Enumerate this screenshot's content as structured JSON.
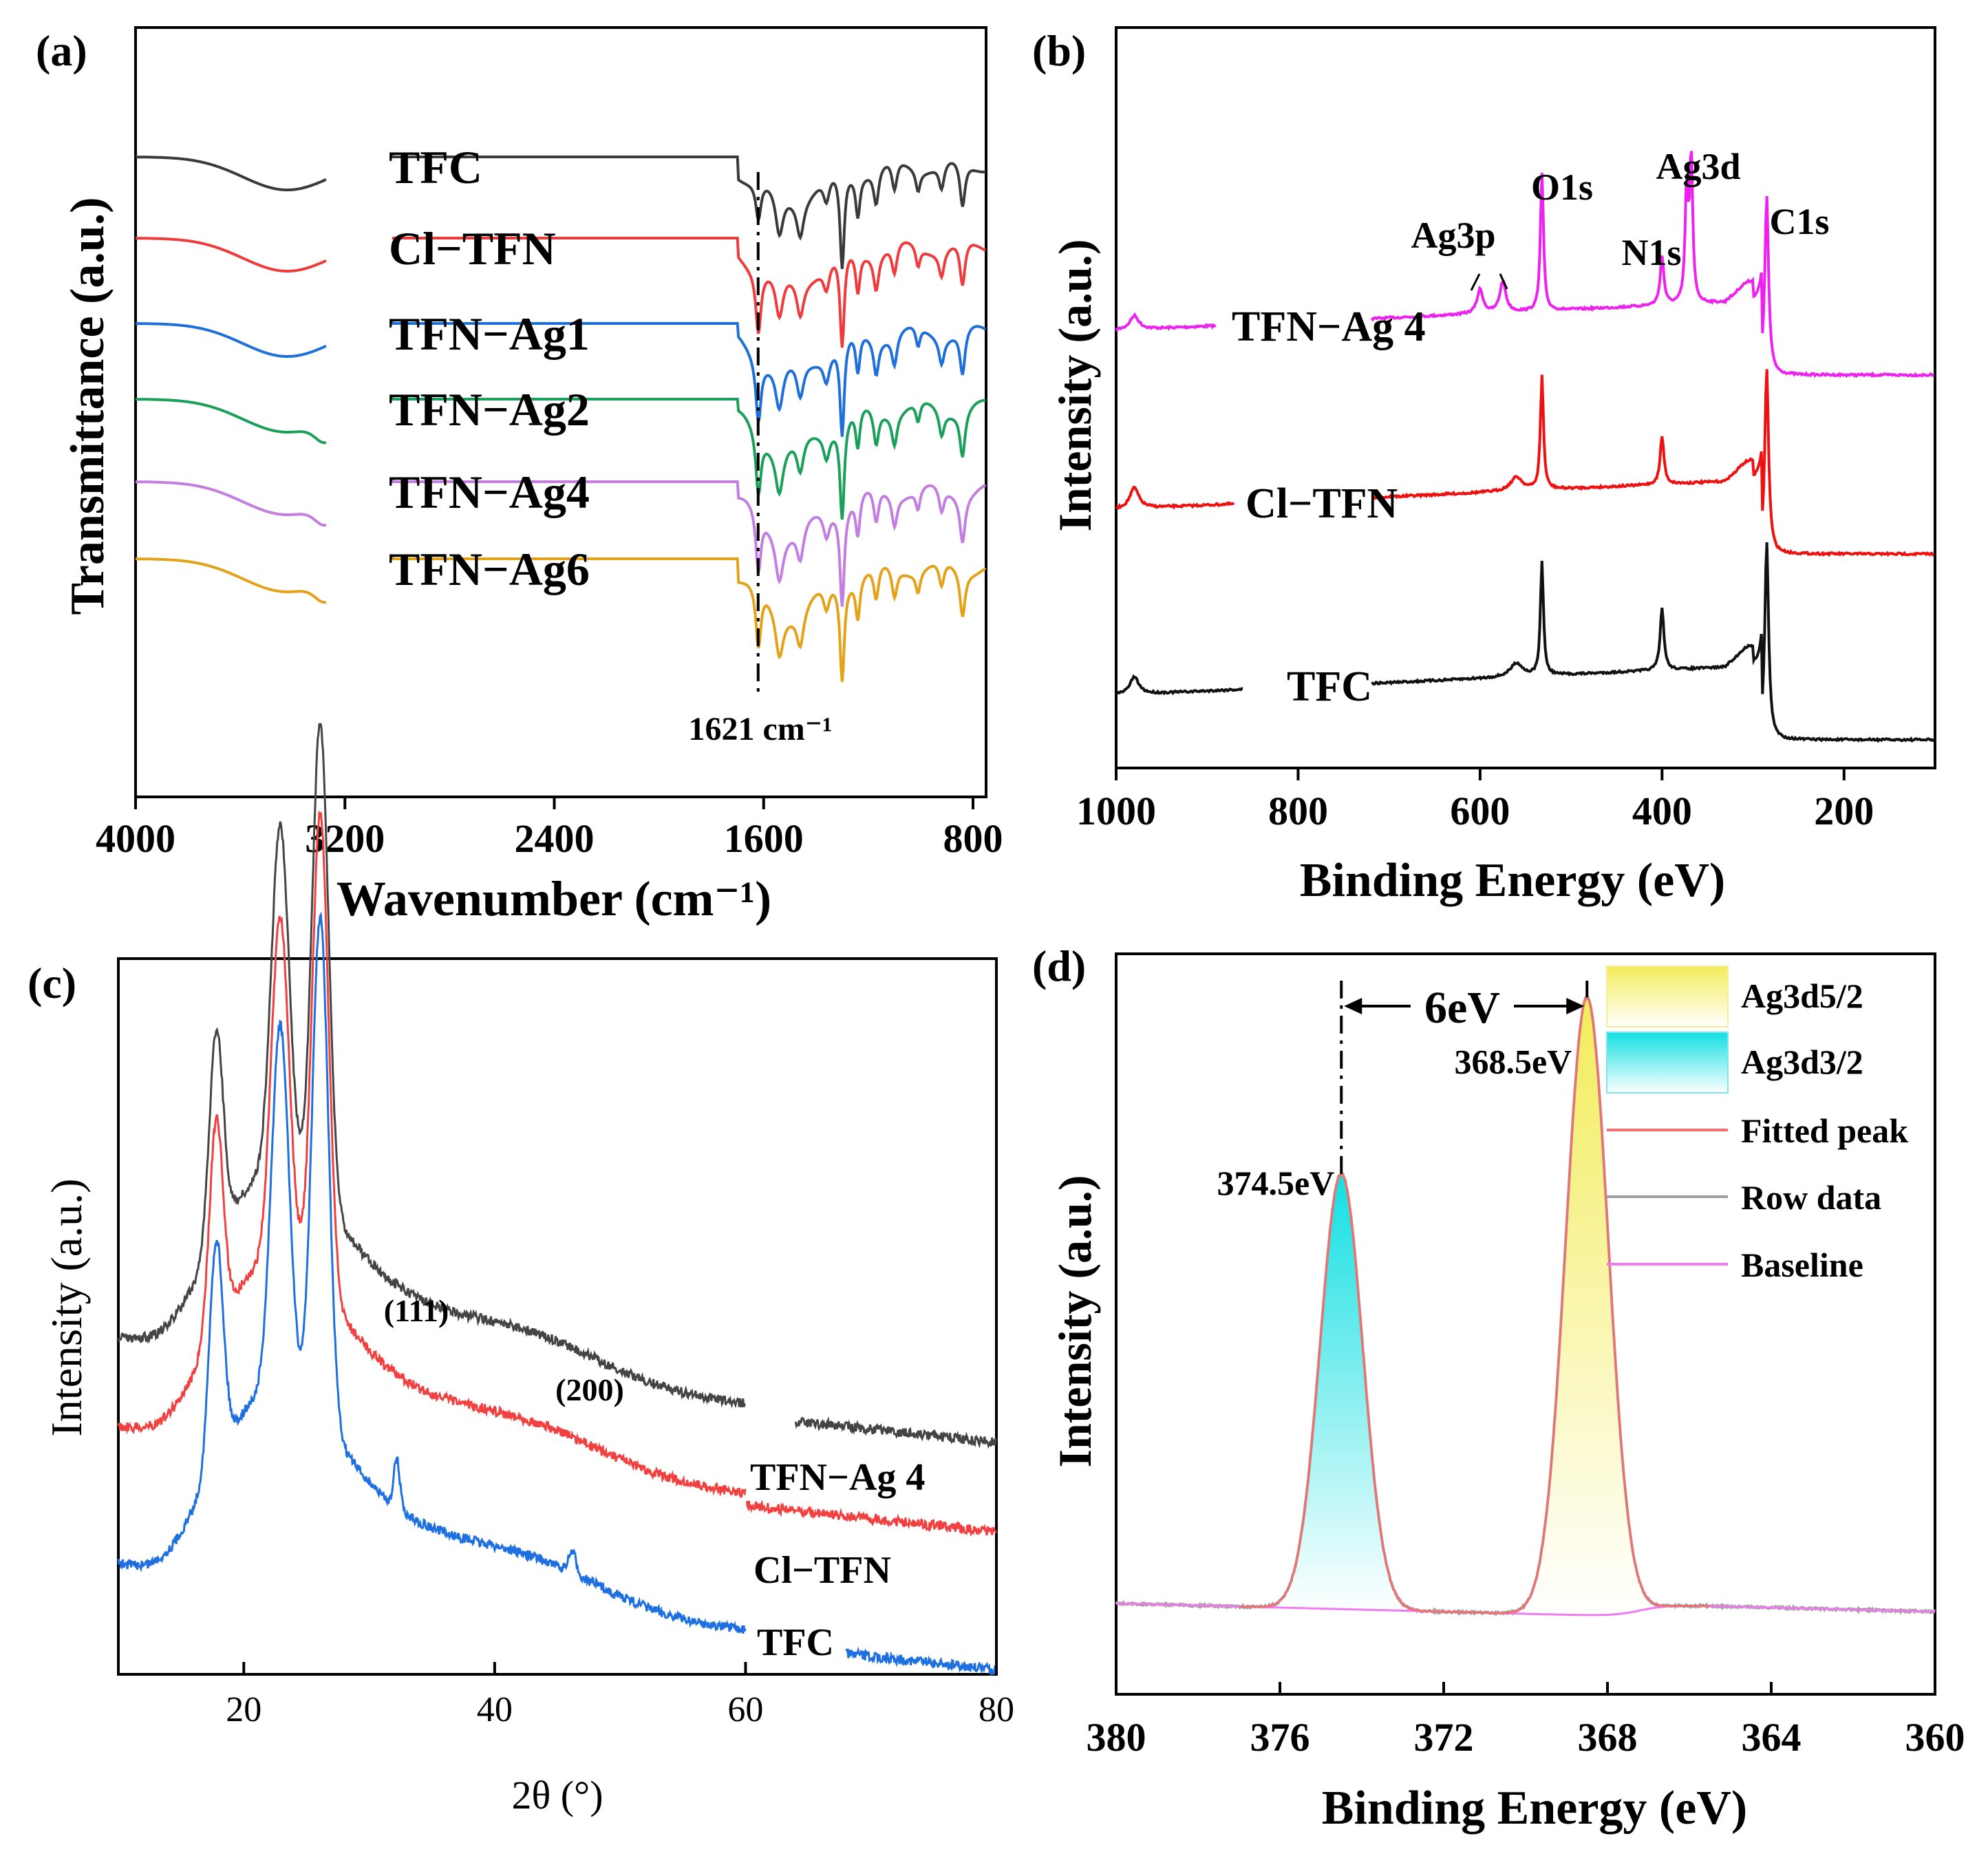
{
  "chart_data": [
    {
      "panel": "(a)",
      "type": "line",
      "title": "",
      "xlabel": "Wavenumber (cm⁻¹)",
      "ylabel": "Transmittance (a.u.)",
      "xlim": [
        4000,
        750
      ],
      "xticks": [
        4000,
        3200,
        2400,
        1600,
        800
      ],
      "tick_labels": [
        "4000",
        "3200",
        "2400",
        "1600",
        "800"
      ],
      "annotation": "1621 cm⁻¹",
      "marker_x": 1621,
      "series": [
        {
          "name": "TFC",
          "color": "#3a3a3a",
          "baseline": 0.0
        },
        {
          "name": "Cl−TFN",
          "color": "#ee3b3b",
          "baseline": 1.0
        },
        {
          "name": "TFN−Ag1",
          "color": "#1e6fd9",
          "baseline": 2.0
        },
        {
          "name": "TFN−Ag2",
          "color": "#1aa05a",
          "baseline": 3.0
        },
        {
          "name": "TFN−Ag4",
          "color": "#c27ee0",
          "baseline": 4.0
        },
        {
          "name": "TFN−Ag6",
          "color": "#e3a21a",
          "baseline": 5.0
        }
      ]
    },
    {
      "panel": "(b)",
      "type": "line",
      "xlabel": "Binding Energy (eV)",
      "ylabel": "Intensity (a.u.)",
      "xlim": [
        1000,
        100
      ],
      "xticks": [
        1000,
        800,
        600,
        400,
        200
      ],
      "tick_labels": [
        "1000",
        "800",
        "600",
        "400",
        "200"
      ],
      "peak_labels": [
        "Ag3p",
        "O1s",
        "Ag3d",
        "N1s",
        "C1s"
      ],
      "series": [
        {
          "name": "TFN−Ag 4",
          "color": "#ee22ee"
        },
        {
          "name": "Cl−TFN",
          "color": "#ee1111"
        },
        {
          "name": "TFC",
          "color": "#111111"
        }
      ]
    },
    {
      "panel": "(c)",
      "type": "line",
      "xlabel": "2θ (°)",
      "ylabel": "Intensity (a.u.)",
      "xlim": [
        10,
        80
      ],
      "xticks": [
        20,
        40,
        60,
        80
      ],
      "tick_labels": [
        "20",
        "40",
        "60",
        "80"
      ],
      "peak_labels": [
        "(111)",
        "(200)"
      ],
      "series": [
        {
          "name": "TFN−Ag 4",
          "color": "#1e6fe0"
        },
        {
          "name": "Cl−TFN",
          "color": "#f04040"
        },
        {
          "name": "TFC",
          "color": "#444444"
        }
      ]
    },
    {
      "panel": "(d)",
      "type": "area",
      "xlabel": "Binding Energy (eV)",
      "ylabel": "Intensity (a.u.)",
      "xlim": [
        380,
        360
      ],
      "xticks": [
        380,
        376,
        372,
        368,
        364,
        360
      ],
      "tick_labels": [
        "380",
        "376",
        "372",
        "368",
        "364",
        "360"
      ],
      "peaks": [
        {
          "label": "374.5eV",
          "center": 374.5,
          "height": 0.62
        },
        {
          "label": "368.5eV",
          "center": 368.5,
          "height": 0.88
        }
      ],
      "separation_label": "6eV",
      "legend": [
        "Ag3d5/2",
        "Ag3d3/2",
        "Fitted peak",
        "Row data",
        "Baseline"
      ],
      "legend_colors": [
        "#f5ee6a",
        "#17e3e6",
        "#f07070",
        "#a0a0a0",
        "#f07af0"
      ]
    }
  ]
}
